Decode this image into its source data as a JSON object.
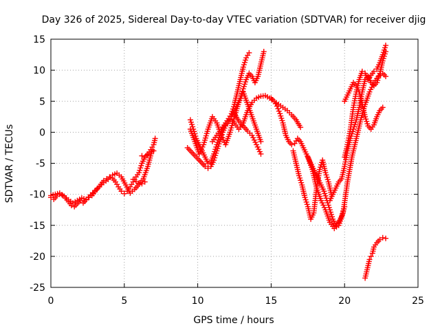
{
  "chart_data": {
    "type": "scatter",
    "title": "Day 326 of 2025, Sidereal Day-to-day VTEC variation (SDTVAR) for receiver djig",
    "xlabel": "GPS time / hours",
    "ylabel": "SDTVAR / TECUs",
    "xlim": [
      0,
      25
    ],
    "ylim": [
      -25,
      15
    ],
    "x_ticks": [
      0,
      5,
      10,
      15,
      20,
      25
    ],
    "y_ticks": [
      -25,
      -20,
      -15,
      -10,
      -5,
      0,
      5,
      10,
      15
    ],
    "x_tick_labels": [
      "0",
      "5",
      "10",
      "15",
      "20",
      "25"
    ],
    "y_tick_labels": [
      "-25",
      "-20",
      "-15",
      "-10",
      "-5",
      "0",
      "5",
      "10",
      "15"
    ],
    "grid": true,
    "marker": "+",
    "color": "#ff0000",
    "series": [
      {
        "x": [
          0.0,
          0.2,
          0.4,
          0.6,
          0.8,
          1.0,
          1.2,
          1.4,
          1.6,
          1.8,
          2.0,
          2.2,
          2.4,
          2.6,
          2.8,
          3.0,
          3.2,
          3.4,
          3.6,
          3.8,
          4.0,
          4.2,
          4.4,
          4.6,
          4.8,
          5.0,
          5.2,
          5.4,
          5.6,
          5.8,
          6.0,
          6.2,
          6.4,
          6.6,
          6.8,
          7.0
        ],
        "y": [
          -10.5,
          -10.8,
          -10.3,
          -10.0,
          -10.2,
          -10.6,
          -11.2,
          -11.8,
          -12.0,
          -11.5,
          -11.0,
          -11.4,
          -10.9,
          -10.5,
          -10.2,
          -9.6,
          -9.0,
          -8.4,
          -7.8,
          -7.5,
          -7.2,
          -7.4,
          -8.0,
          -8.8,
          -9.5,
          -9.9,
          -9.5,
          -8.8,
          -8.0,
          -7.2,
          -6.5,
          -5.0,
          -4.0,
          -3.5,
          -3.2,
          -3.0
        ]
      },
      {
        "x": [
          0.0,
          0.3,
          0.6,
          0.9,
          1.2,
          1.5,
          1.8,
          2.1,
          2.4,
          2.7,
          3.0,
          3.3,
          3.6,
          3.9,
          4.2,
          4.5,
          4.8,
          5.1,
          5.4,
          5.7,
          6.0,
          6.3,
          6.6,
          6.9
        ],
        "y": [
          -10.2,
          -10.0,
          -9.8,
          -10.3,
          -10.9,
          -11.4,
          -11.0,
          -10.6,
          -10.8,
          -10.1,
          -9.4,
          -8.8,
          -8.1,
          -7.6,
          -6.9,
          -6.6,
          -7.2,
          -8.5,
          -9.8,
          -9.2,
          -8.4,
          -7.5,
          -5.5,
          -2.8
        ]
      },
      {
        "x": [
          6.2,
          6.4,
          6.6,
          6.8,
          7.0,
          7.1
        ],
        "y": [
          -3.8,
          -4.0,
          -3.6,
          -2.8,
          -2.0,
          -1.0
        ]
      },
      {
        "x": [
          5.6,
          5.8,
          6.0,
          6.2,
          6.4
        ],
        "y": [
          -7.6,
          -7.9,
          -8.2,
          -8.3,
          -8.0
        ]
      },
      {
        "x": [
          9.5,
          9.7,
          9.9,
          10.1,
          10.3,
          10.5,
          10.7,
          10.9,
          11.1,
          11.3,
          11.5,
          11.7,
          11.9,
          12.1,
          12.3,
          12.5,
          12.7,
          12.9,
          13.1,
          13.3,
          13.5
        ],
        "y": [
          2.0,
          0.5,
          -1.0,
          -2.0,
          -3.0,
          -4.0,
          -5.0,
          -4.8,
          -3.5,
          -2.0,
          -0.5,
          0.8,
          1.5,
          2.2,
          3.0,
          4.5,
          6.5,
          8.5,
          10.5,
          12.0,
          12.8
        ]
      },
      {
        "x": [
          9.3,
          9.5,
          9.7,
          9.9,
          10.1,
          10.3,
          10.5,
          10.7,
          10.9,
          11.1,
          11.3,
          11.5,
          11.7,
          11.9,
          12.1,
          12.3,
          12.5,
          12.7,
          12.9,
          13.1,
          13.3,
          13.5,
          13.7,
          13.9,
          14.1,
          14.3,
          14.5
        ],
        "y": [
          -2.5,
          -3.0,
          -3.5,
          -4.0,
          -4.5,
          -5.0,
          -5.5,
          -5.8,
          -5.5,
          -4.5,
          -3.0,
          -1.5,
          0.0,
          1.0,
          1.8,
          2.5,
          3.5,
          4.5,
          5.5,
          7.0,
          8.5,
          9.5,
          9.0,
          8.0,
          9.0,
          11.0,
          13.0
        ]
      },
      {
        "x": [
          9.5,
          9.8,
          10.1,
          10.4,
          10.7,
          11.0,
          11.3,
          11.6,
          11.9,
          12.2,
          12.5,
          12.8,
          13.1,
          13.4,
          13.7,
          14.0,
          14.3
        ],
        "y": [
          0.5,
          -1.5,
          -3.5,
          -2.0,
          0.5,
          2.5,
          1.5,
          -0.5,
          -2.0,
          0.0,
          2.5,
          4.8,
          6.5,
          4.5,
          2.5,
          0.5,
          -1.5
        ]
      },
      {
        "x": [
          11.0,
          11.3,
          11.6,
          11.9,
          12.2,
          12.5,
          12.8,
          13.1,
          13.4,
          13.7,
          14.0,
          14.3,
          14.6,
          14.9,
          15.2,
          15.5,
          15.8,
          16.1,
          16.4,
          16.7,
          17.0
        ],
        "y": [
          -1.5,
          -0.5,
          0.5,
          1.2,
          2.0,
          1.5,
          0.5,
          1.5,
          3.5,
          4.8,
          5.5,
          5.8,
          5.9,
          5.5,
          5.0,
          4.5,
          4.0,
          3.5,
          2.8,
          2.0,
          0.8
        ]
      },
      {
        "x": [
          12.5,
          12.8,
          13.1,
          13.4,
          13.7,
          14.0,
          14.3
        ],
        "y": [
          3.0,
          1.8,
          1.0,
          0.2,
          -0.5,
          -2.0,
          -3.5
        ]
      },
      {
        "x": [
          15.0,
          15.2,
          15.4,
          15.6,
          15.8,
          16.0,
          16.2,
          16.4,
          16.6,
          16.8,
          17.0,
          17.2,
          17.4,
          17.6,
          17.8,
          18.0,
          18.2,
          18.4,
          18.6,
          18.8,
          19.0,
          19.2,
          19.4,
          19.6,
          19.8,
          20.0
        ],
        "y": [
          5.5,
          5.0,
          4.2,
          3.0,
          1.5,
          -0.5,
          -1.5,
          -2.0,
          -1.8,
          -1.0,
          -1.5,
          -2.5,
          -3.5,
          -4.5,
          -5.5,
          -6.5,
          -7.5,
          -8.5,
          -9.5,
          -11.0,
          -12.5,
          -14.0,
          -15.0,
          -14.5,
          -13.5,
          -12.0
        ]
      },
      {
        "x": [
          16.5,
          16.7,
          16.9,
          17.1,
          17.3,
          17.5,
          17.7,
          17.9,
          18.1,
          18.3,
          18.5,
          18.7,
          18.9,
          19.1
        ],
        "y": [
          -3.0,
          -5.0,
          -7.0,
          -8.5,
          -10.5,
          -12.0,
          -14.0,
          -13.0,
          -9.0,
          -6.0,
          -4.5,
          -6.5,
          -8.0,
          -10.0
        ]
      },
      {
        "x": [
          17.5,
          17.8,
          18.1,
          18.4,
          18.7,
          19.0,
          19.3,
          19.6,
          19.9,
          20.2,
          20.5,
          20.8,
          21.1,
          21.4,
          21.7,
          22.0,
          22.3,
          22.6,
          22.8
        ],
        "y": [
          -4.0,
          -6.0,
          -9.0,
          -11.0,
          -12.5,
          -14.5,
          -15.5,
          -15.0,
          -13.0,
          -8.0,
          -4.0,
          -1.0,
          2.0,
          4.5,
          6.5,
          8.0,
          9.0,
          9.5,
          9.0
        ]
      },
      {
        "x": [
          19.0,
          19.2,
          19.4,
          19.6,
          19.8,
          20.0,
          20.2,
          20.4,
          20.6,
          20.8,
          21.0,
          21.2,
          21.4,
          21.6,
          21.8,
          22.0,
          22.2,
          22.4,
          22.6,
          22.8
        ],
        "y": [
          -11.0,
          -10.0,
          -9.0,
          -8.0,
          -7.5,
          -5.5,
          -3.0,
          -1.0,
          0.5,
          2.0,
          4.0,
          6.5,
          8.5,
          9.0,
          8.0,
          7.5,
          8.0,
          9.5,
          11.5,
          13.0
        ]
      },
      {
        "x": [
          20.0,
          20.2,
          20.4,
          20.6,
          20.8,
          21.0,
          21.2,
          21.4,
          21.6,
          21.8,
          22.0,
          22.2,
          22.4,
          22.6,
          22.8
        ],
        "y": [
          -4.0,
          -2.0,
          0.5,
          4.0,
          6.5,
          8.5,
          9.8,
          9.5,
          8.5,
          9.2,
          9.8,
          10.2,
          11.2,
          12.5,
          14.0
        ]
      },
      {
        "x": [
          20.0,
          20.2,
          20.4,
          20.6,
          20.8,
          21.0,
          21.2,
          21.4,
          21.6,
          21.8,
          22.0,
          22.2,
          22.4,
          22.6
        ],
        "y": [
          5.0,
          6.0,
          7.0,
          8.0,
          7.5,
          6.5,
          4.5,
          2.5,
          1.0,
          0.5,
          1.2,
          2.5,
          3.5,
          4.0
        ]
      },
      {
        "x": [
          21.4,
          21.5,
          21.6,
          21.7,
          21.8,
          21.9,
          22.0,
          22.2,
          22.4,
          22.6,
          22.8
        ],
        "y": [
          -23.5,
          -22.5,
          -21.5,
          -20.5,
          -20.0,
          -19.5,
          -18.5,
          -17.8,
          -17.3,
          -17.0,
          -17.1
        ]
      }
    ]
  }
}
